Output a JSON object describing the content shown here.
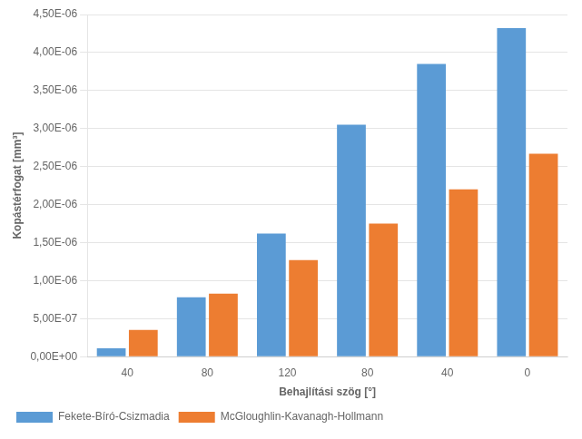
{
  "chart_data": {
    "type": "bar",
    "categories": [
      "40",
      "80",
      "120",
      "80",
      "40",
      "0"
    ],
    "series": [
      {
        "name": "Fekete-Bíró-Csizmadia",
        "color": "#5B9BD5",
        "values": [
          1.1e-07,
          7.8e-07,
          1.62e-06,
          3.05e-06,
          3.85e-06,
          4.32e-06
        ]
      },
      {
        "name": "McGloughlin-Kavanagh-Hollmann",
        "color": "#ED7D31",
        "values": [
          3.5e-07,
          8.3e-07,
          1.27e-06,
          1.75e-06,
          2.2e-06,
          2.67e-06
        ]
      }
    ],
    "xlabel": "Behajlítási szög [°]",
    "ylabel": "Kopástérfogat [mm³]",
    "ylim": [
      0,
      4.5e-06
    ],
    "yticks": [
      {
        "value": 0,
        "label": "0,00E+00"
      },
      {
        "value": 5e-07,
        "label": "5,00E-07"
      },
      {
        "value": 1e-06,
        "label": "1,00E-06"
      },
      {
        "value": 1.5e-06,
        "label": "1,50E-06"
      },
      {
        "value": 2e-06,
        "label": "2,00E-06"
      },
      {
        "value": 2.5e-06,
        "label": "2,50E-06"
      },
      {
        "value": 3e-06,
        "label": "3,00E-06"
      },
      {
        "value": 3.5e-06,
        "label": "3,50E-06"
      },
      {
        "value": 4e-06,
        "label": "4,00E-06"
      },
      {
        "value": 4.5e-06,
        "label": "4,50E-06"
      }
    ],
    "grid": true,
    "legend": "bottom"
  }
}
